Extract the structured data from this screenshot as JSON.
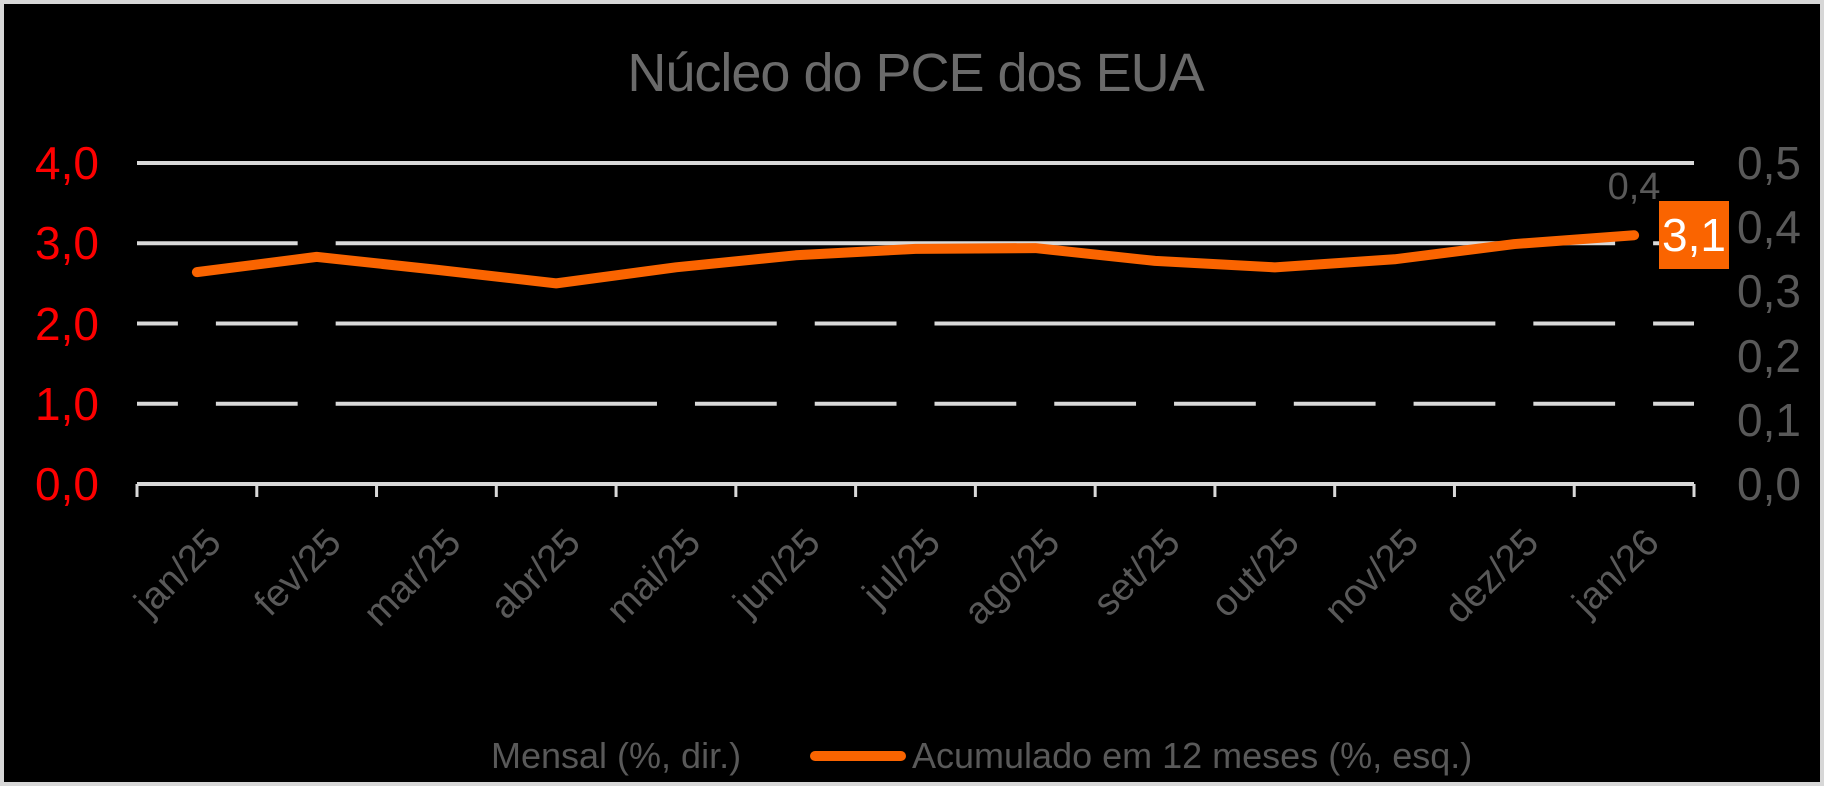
{
  "title": "Núcleo do PCE dos EUA",
  "colors": {
    "background": "#000000",
    "frame_border": "#D7D7D7",
    "gridline": "#D9D9D9",
    "axis_line": "#D9D9D9",
    "left_axis_text": "#FE0000",
    "right_axis_text": "#595959",
    "category_text": "#595959",
    "title_text": "#6A6A6A",
    "line_series": "#FA6400",
    "bar_series": "#000000",
    "badge_text": "#FFFFFF"
  },
  "left_axis": {
    "tick_labels": [
      "0,0",
      "1,0",
      "2,0",
      "3,0",
      "4,0"
    ],
    "min": 0,
    "max": 4
  },
  "right_axis": {
    "tick_labels": [
      "0,0",
      "0,1",
      "0,2",
      "0,3",
      "0,4",
      "0,5"
    ],
    "min": 0,
    "max": 0.5
  },
  "chart_data": {
    "type": "combo",
    "title": "Núcleo do PCE dos EUA",
    "categories": [
      "jan/25",
      "fev/25",
      "mar/25",
      "abr/25",
      "mai/25",
      "jun/25",
      "jul/25",
      "ago/25",
      "set/25",
      "out/25",
      "nov/25",
      "dez/25",
      "jan/26"
    ],
    "series": [
      {
        "name": "Mensal (%, dir.)",
        "type": "bar",
        "axis": "right",
        "color": "#000000",
        "values": [
          0.3,
          0.4,
          0.1,
          0.1,
          0.2,
          0.3,
          0.3,
          0.2,
          0.2,
          0.2,
          0.2,
          0.3,
          0.4
        ],
        "last_point_label": "0,4"
      },
      {
        "name": "Acumulado em 12 meses (%, esq.)",
        "type": "line",
        "axis": "left",
        "color": "#FA6400",
        "values": [
          2.64,
          2.83,
          2.67,
          2.5,
          2.7,
          2.85,
          2.93,
          2.94,
          2.78,
          2.7,
          2.8,
          2.99,
          3.1
        ],
        "last_point_label": "3,1"
      }
    ],
    "ylim_left": [
      0,
      4
    ],
    "ylim_right": [
      0,
      0.5
    ],
    "grid": "horizontal solid, occluded by black bars",
    "legend_position": "bottom"
  },
  "legend": {
    "mensal_label": "Mensal (%, dir.)",
    "acumulado_label": "Acumulado em 12 meses (%, esq.)"
  }
}
